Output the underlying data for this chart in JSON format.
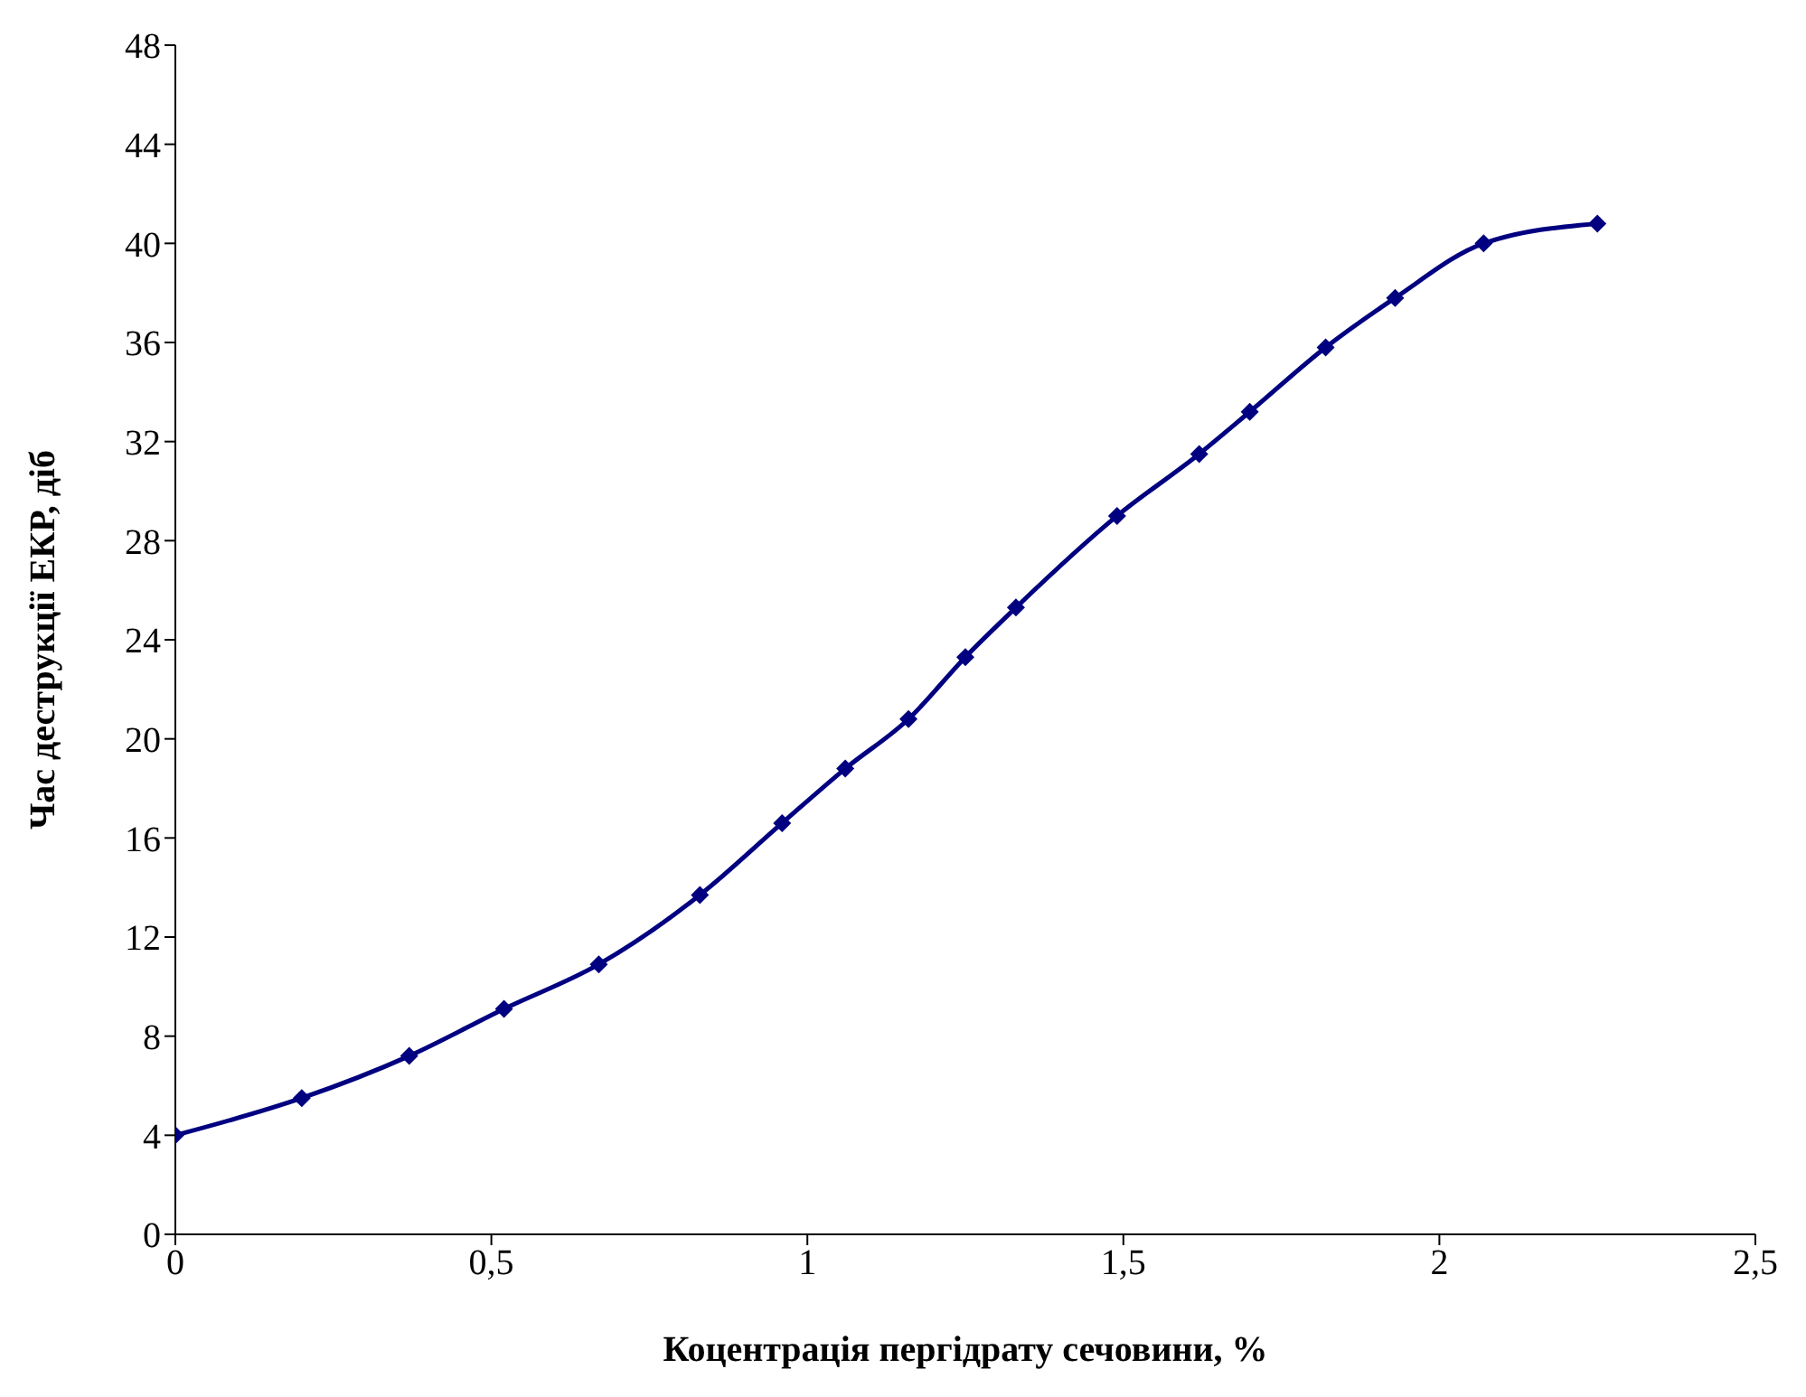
{
  "chart_data": {
    "type": "line",
    "xlabel": "Коцентрація пергідрату сечовини, %",
    "ylabel": "Час деструкції ЕКР, діб",
    "x": [
      0,
      0.2,
      0.37,
      0.52,
      0.67,
      0.83,
      0.96,
      1.06,
      1.16,
      1.25,
      1.33,
      1.49,
      1.62,
      1.7,
      1.82,
      1.93,
      2.07,
      2.25
    ],
    "series": [
      {
        "color": "#000080",
        "values": [
          4,
          5.5,
          7.2,
          9.1,
          10.9,
          13.7,
          16.6,
          18.8,
          20.8,
          23.3,
          25.3,
          29,
          31.5,
          33.2,
          35.8,
          37.8,
          40,
          40.8
        ]
      }
    ],
    "xlim": [
      0,
      2.5
    ],
    "xticks": [
      0,
      {
        "value": 0.5,
        "label": "0,5"
      },
      1,
      {
        "value": 1.5,
        "label": "1,5"
      },
      2,
      {
        "value": 2.5,
        "label": "2,5"
      }
    ],
    "ylim": [
      0,
      48
    ],
    "yticks": [
      0,
      4,
      8,
      12,
      16,
      20,
      24,
      28,
      32,
      36,
      40,
      44,
      48
    ],
    "grid": false,
    "legend": false,
    "marker": "diamond",
    "line_style": "solid"
  }
}
